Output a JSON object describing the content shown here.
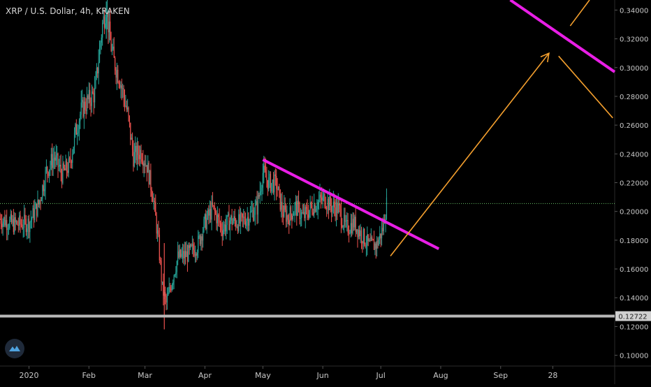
{
  "header": {
    "title": "XRP / U.S. Dollar, 4h, KRAKEN"
  },
  "chart_data": {
    "type": "candlestick",
    "title": "XRP / U.S. Dollar, 4h, KRAKEN",
    "ylim": [
      0.0925,
      0.347
    ],
    "y_ticks": [
      0.34,
      0.32,
      0.3,
      0.28,
      0.26,
      0.24,
      0.22,
      0.2,
      0.18,
      0.16,
      0.14,
      0.12,
      0.1
    ],
    "y_tick_labels": [
      "0.34000",
      "0.32000",
      "0.30000",
      "0.28000",
      "0.26000",
      "0.24000",
      "0.22000",
      "0.20000",
      "0.18000",
      "0.16000",
      "0.14000",
      "0.12000",
      "0.10000"
    ],
    "x_tick_labels": [
      {
        "label": "2020",
        "day": 0
      },
      {
        "label": "Feb",
        "day": 31
      },
      {
        "label": "Mar",
        "day": 60
      },
      {
        "label": "Apr",
        "day": 91
      },
      {
        "label": "May",
        "day": 121
      },
      {
        "label": "Jun",
        "day": 152
      },
      {
        "label": "Jul",
        "day": 182
      },
      {
        "label": "Aug",
        "day": 213
      },
      {
        "label": "Sep",
        "day": 244
      },
      {
        "label": "28",
        "day": 271
      }
    ],
    "xlim_days": [
      -15,
      303
    ],
    "price_path": [
      [
        -15,
        0.195
      ],
      [
        -8,
        0.191
      ],
      [
        0,
        0.192
      ],
      [
        5,
        0.205
      ],
      [
        9,
        0.228
      ],
      [
        13,
        0.238
      ],
      [
        17,
        0.226
      ],
      [
        21,
        0.232
      ],
      [
        24,
        0.255
      ],
      [
        27,
        0.27
      ],
      [
        30,
        0.276
      ],
      [
        34,
        0.282
      ],
      [
        38,
        0.33
      ],
      [
        40,
        0.342
      ],
      [
        42,
        0.318
      ],
      [
        44,
        0.304
      ],
      [
        47,
        0.292
      ],
      [
        51,
        0.268
      ],
      [
        54,
        0.238
      ],
      [
        58,
        0.242
      ],
      [
        61,
        0.232
      ],
      [
        64,
        0.212
      ],
      [
        67,
        0.178
      ],
      [
        69,
        0.146
      ],
      [
        71,
        0.136
      ],
      [
        74,
        0.152
      ],
      [
        77,
        0.168
      ],
      [
        82,
        0.17
      ],
      [
        87,
        0.176
      ],
      [
        91,
        0.192
      ],
      [
        95,
        0.202
      ],
      [
        100,
        0.188
      ],
      [
        104,
        0.194
      ],
      [
        109,
        0.192
      ],
      [
        114,
        0.197
      ],
      [
        118,
        0.203
      ],
      [
        121,
        0.227
      ],
      [
        124,
        0.22
      ],
      [
        128,
        0.219
      ],
      [
        131,
        0.2
      ],
      [
        134,
        0.196
      ],
      [
        138,
        0.203
      ],
      [
        142,
        0.196
      ],
      [
        146,
        0.203
      ],
      [
        150,
        0.207
      ],
      [
        153,
        0.209
      ],
      [
        156,
        0.204
      ],
      [
        160,
        0.202
      ],
      [
        164,
        0.188
      ],
      [
        168,
        0.192
      ],
      [
        172,
        0.184
      ],
      [
        176,
        0.176
      ],
      [
        180,
        0.177
      ],
      [
        183,
        0.188
      ],
      [
        185,
        0.205
      ]
    ],
    "current_price_line": 0.2055,
    "horizontal_support": {
      "value": 0.12722,
      "label": "0.12722"
    },
    "trendlines": [
      {
        "color": "#e91ee6",
        "from": [
          121,
          0.236
        ],
        "to": [
          212,
          0.174
        ]
      },
      {
        "color": "#e91ee6",
        "from": [
          249,
          0.347
        ],
        "to": [
          303,
          0.297
        ]
      }
    ],
    "arrows": [
      {
        "color": "#f5a02e",
        "from": [
          187,
          0.169
        ],
        "to": [
          269,
          0.31
        ]
      },
      {
        "color": "#f5a02e",
        "from": [
          274,
          0.308
        ],
        "to": [
          302,
          0.265
        ]
      },
      {
        "color": "#f5a02e",
        "from": [
          280,
          0.329
        ],
        "to": [
          290,
          0.347
        ]
      }
    ],
    "colors": {
      "up": "#26a69a",
      "down": "#ef5350",
      "grid_dotted": "#6ac46a",
      "support": "#b8b8b8",
      "axis_text": "#c8c8c8"
    }
  }
}
